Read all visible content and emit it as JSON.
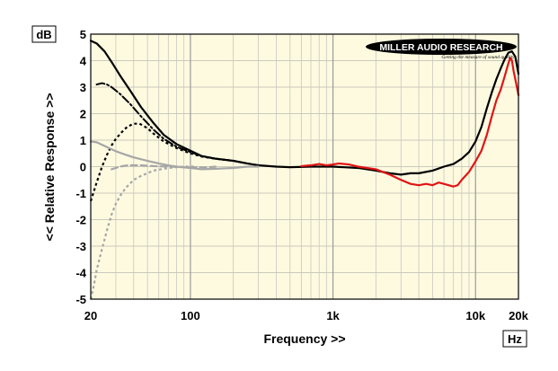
{
  "chart_data": {
    "type": "line",
    "ylabel": "<< Relative Response >>",
    "xlabel": "Frequency >>",
    "y_unit": "dB",
    "x_unit": "Hz",
    "x_scale": "log",
    "xlim": [
      20,
      20000
    ],
    "ylim": [
      -5,
      5
    ],
    "x_tick_labels": [
      "20",
      "100",
      "1k",
      "10k",
      "20k"
    ],
    "x_tick_values": [
      20,
      100,
      1000,
      10000,
      20000
    ],
    "y_ticks": [
      5,
      4,
      3,
      2,
      1,
      0,
      -1,
      -2,
      -3,
      -4,
      -5
    ],
    "grid": true,
    "background": "#fdfae0",
    "logo": {
      "name": "MILLER AUDIO RESEARCH",
      "tagline": "Getting the measure of sound quality"
    },
    "series": [
      {
        "color": "#000000",
        "style": "solid",
        "width": 2.2,
        "points": [
          [
            20,
            4.75
          ],
          [
            22,
            4.65
          ],
          [
            25,
            4.35
          ],
          [
            28,
            3.95
          ],
          [
            32,
            3.45
          ],
          [
            38,
            2.85
          ],
          [
            45,
            2.25
          ],
          [
            55,
            1.65
          ],
          [
            65,
            1.2
          ],
          [
            80,
            0.85
          ],
          [
            100,
            0.6
          ],
          [
            120,
            0.4
          ],
          [
            150,
            0.3
          ],
          [
            200,
            0.22
          ],
          [
            250,
            0.12
          ],
          [
            300,
            0.05
          ],
          [
            400,
            0.0
          ],
          [
            500,
            -0.02
          ],
          [
            700,
            0.0
          ],
          [
            1000,
            0.0
          ],
          [
            1500,
            -0.05
          ],
          [
            2000,
            -0.15
          ],
          [
            2500,
            -0.25
          ],
          [
            3000,
            -0.3
          ],
          [
            3500,
            -0.25
          ],
          [
            4000,
            -0.25
          ],
          [
            5000,
            -0.15
          ],
          [
            6000,
            0.0
          ],
          [
            7000,
            0.1
          ],
          [
            8000,
            0.3
          ],
          [
            9000,
            0.55
          ],
          [
            10000,
            0.95
          ],
          [
            11000,
            1.5
          ],
          [
            12000,
            2.2
          ],
          [
            13000,
            2.8
          ],
          [
            14000,
            3.3
          ],
          [
            15000,
            3.7
          ],
          [
            16000,
            4.05
          ],
          [
            17000,
            4.3
          ],
          [
            18000,
            4.35
          ],
          [
            19000,
            4.15
          ],
          [
            20000,
            3.5
          ]
        ]
      },
      {
        "color": "#e01515",
        "style": "solid",
        "width": 2.2,
        "points": [
          [
            600,
            0.02
          ],
          [
            700,
            0.05
          ],
          [
            800,
            0.1
          ],
          [
            900,
            0.05
          ],
          [
            1000,
            0.08
          ],
          [
            1100,
            0.12
          ],
          [
            1300,
            0.08
          ],
          [
            1500,
            0.0
          ],
          [
            2000,
            -0.1
          ],
          [
            2500,
            -0.3
          ],
          [
            3000,
            -0.5
          ],
          [
            3500,
            -0.65
          ],
          [
            4000,
            -0.7
          ],
          [
            4500,
            -0.65
          ],
          [
            5000,
            -0.7
          ],
          [
            5500,
            -0.6
          ],
          [
            6000,
            -0.65
          ],
          [
            7000,
            -0.75
          ],
          [
            7500,
            -0.7
          ],
          [
            8000,
            -0.5
          ],
          [
            9000,
            -0.2
          ],
          [
            10000,
            0.2
          ],
          [
            11000,
            0.6
          ],
          [
            12000,
            1.2
          ],
          [
            13000,
            1.9
          ],
          [
            14000,
            2.5
          ],
          [
            15000,
            2.9
          ],
          [
            16000,
            3.4
          ],
          [
            17000,
            3.9
          ],
          [
            17500,
            4.1
          ],
          [
            18000,
            4.0
          ],
          [
            18500,
            3.6
          ],
          [
            19000,
            3.3
          ],
          [
            20000,
            2.7
          ]
        ]
      },
      {
        "color": "#000000",
        "style": "dashdot",
        "width": 2.0,
        "points": [
          [
            22,
            3.1
          ],
          [
            24,
            3.15
          ],
          [
            26,
            3.1
          ],
          [
            28,
            3.0
          ],
          [
            32,
            2.75
          ],
          [
            38,
            2.35
          ],
          [
            45,
            1.9
          ],
          [
            55,
            1.4
          ],
          [
            65,
            1.05
          ],
          [
            80,
            0.75
          ],
          [
            100,
            0.55
          ],
          [
            120,
            0.4
          ],
          [
            150,
            0.3
          ],
          [
            200,
            0.22
          ],
          [
            250,
            0.12
          ],
          [
            300,
            0.05
          ]
        ]
      },
      {
        "color": "#000000",
        "style": "dotted",
        "width": 2.2,
        "points": [
          [
            20,
            -1.3
          ],
          [
            22,
            -0.6
          ],
          [
            24,
            0.0
          ],
          [
            26,
            0.45
          ],
          [
            28,
            0.8
          ],
          [
            30,
            1.05
          ],
          [
            33,
            1.3
          ],
          [
            36,
            1.5
          ],
          [
            40,
            1.62
          ],
          [
            44,
            1.62
          ],
          [
            50,
            1.45
          ],
          [
            55,
            1.25
          ],
          [
            65,
            0.95
          ],
          [
            80,
            0.7
          ],
          [
            100,
            0.5
          ],
          [
            120,
            0.38
          ],
          [
            150,
            0.3
          ],
          [
            200,
            0.22
          ]
        ]
      },
      {
        "color": "#a6a6a6",
        "style": "solid",
        "width": 2.2,
        "points": [
          [
            20,
            0.95
          ],
          [
            22,
            0.92
          ],
          [
            25,
            0.78
          ],
          [
            30,
            0.58
          ],
          [
            35,
            0.45
          ],
          [
            40,
            0.35
          ],
          [
            50,
            0.22
          ],
          [
            60,
            0.12
          ],
          [
            70,
            0.05
          ],
          [
            80,
            0.0
          ],
          [
            100,
            -0.05
          ],
          [
            120,
            -0.1
          ],
          [
            150,
            -0.08
          ],
          [
            200,
            -0.05
          ],
          [
            250,
            0.0
          ],
          [
            300,
            0.0
          ]
        ]
      },
      {
        "color": "#a6a6a6",
        "style": "dashed",
        "width": 2.2,
        "points": [
          [
            28,
            -0.1
          ],
          [
            32,
            0.0
          ],
          [
            36,
            0.05
          ],
          [
            40,
            0.05
          ],
          [
            45,
            0.05
          ],
          [
            55,
            0.02
          ],
          [
            70,
            0.0
          ],
          [
            90,
            -0.02
          ],
          [
            110,
            -0.02
          ],
          [
            130,
            -0.03
          ],
          [
            150,
            0.0
          ]
        ]
      },
      {
        "color": "#a6a6a6",
        "style": "dotted",
        "width": 2.2,
        "points": [
          [
            20,
            -5.0
          ],
          [
            21,
            -4.5
          ],
          [
            22,
            -3.9
          ],
          [
            24,
            -3.1
          ],
          [
            26,
            -2.4
          ],
          [
            28,
            -1.8
          ],
          [
            30,
            -1.4
          ],
          [
            33,
            -1.0
          ],
          [
            36,
            -0.75
          ],
          [
            40,
            -0.5
          ],
          [
            45,
            -0.35
          ],
          [
            55,
            -0.15
          ],
          [
            70,
            -0.05
          ],
          [
            90,
            0.0
          ],
          [
            110,
            0.0
          ]
        ]
      }
    ]
  }
}
